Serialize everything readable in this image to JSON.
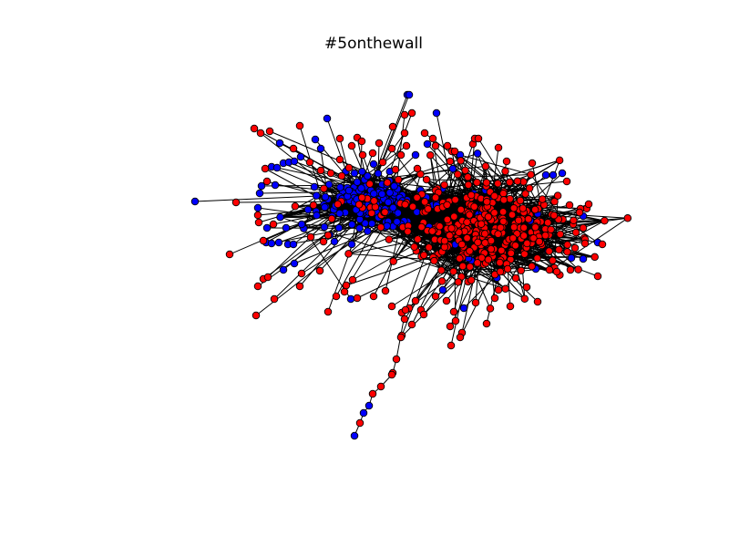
{
  "figure": {
    "title": "#5onthewall"
  },
  "graph": {
    "node_colors": {
      "red": "#ff0000",
      "blue": "#0000ff"
    },
    "edge_color": "#000000",
    "node_outline": "#000000"
  }
}
